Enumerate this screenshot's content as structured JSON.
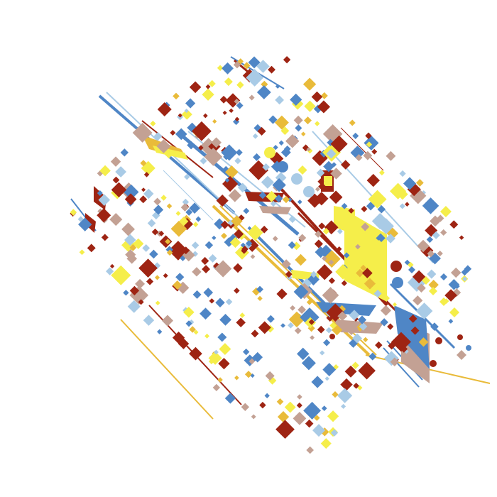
{
  "artwork": {
    "palette": {
      "background": "#ffffff",
      "blue": "#4f86c6",
      "light_blue": "#a9cbe6",
      "red": "#9e2413",
      "yellow": "#f5ee4a",
      "gold": "#e9bb3a",
      "tan": "#c3a194"
    },
    "motif": "diagonal-diamond-mosaic"
  }
}
